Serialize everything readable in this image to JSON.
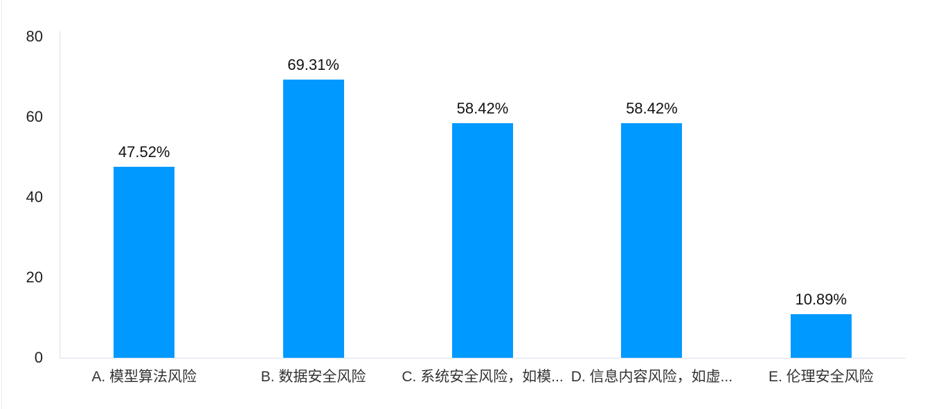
{
  "chart_data": {
    "type": "bar",
    "categories": [
      "A. 模型算法风险",
      "B. 数据安全风险",
      "C. 系统安全风险，如模...",
      "D. 信息内容风险，如虚...",
      "E. 伦理安全风险"
    ],
    "values": [
      47.52,
      69.31,
      58.42,
      58.42,
      10.89
    ],
    "value_labels": [
      "47.52%",
      "69.31%",
      "58.42%",
      "58.42%",
      "10.89%"
    ],
    "title": "",
    "xlabel": "",
    "ylabel": "",
    "ylim": [
      0,
      80
    ],
    "yticks": [
      0,
      20,
      40,
      60,
      80
    ],
    "grid": false,
    "legend_position": "none",
    "bar_color": "#0099FF",
    "axis_line_color": "#D9DFEB",
    "window_edge_color": "#E8E8E8",
    "tick_label_color": "#1F1F1F",
    "value_label_color": "#111111",
    "category_label_color": "#333333",
    "background_color": "#FFFFFF"
  }
}
